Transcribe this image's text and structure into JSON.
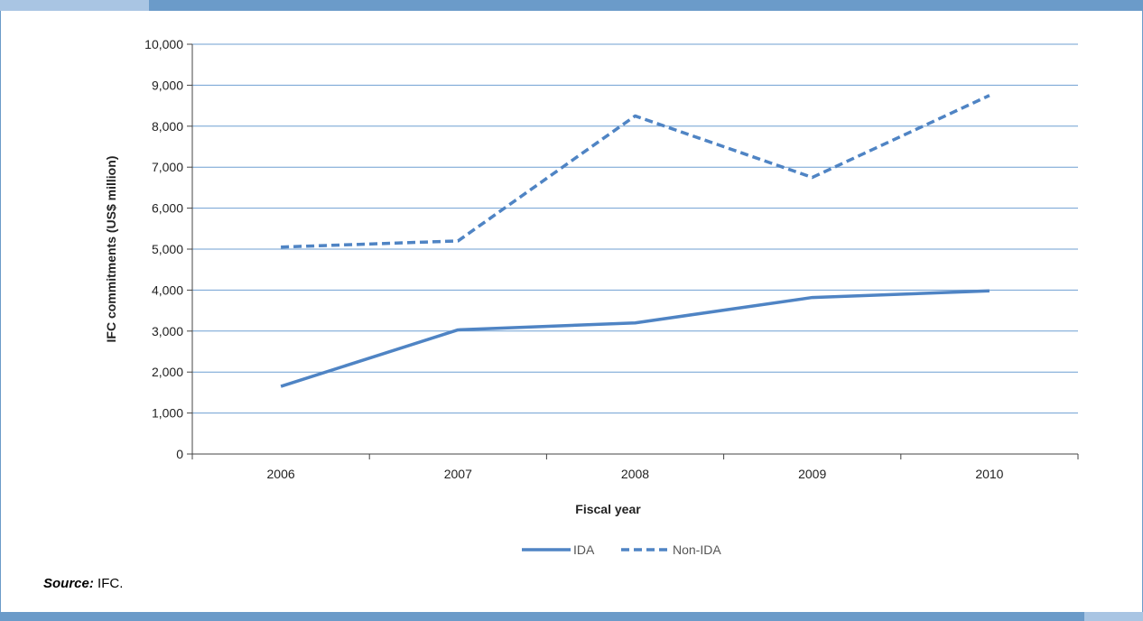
{
  "chart_data": {
    "type": "line",
    "title": "",
    "xlabel": "Fiscal year",
    "ylabel": "IFC commitments (US$ million)",
    "categories": [
      "2006",
      "2007",
      "2008",
      "2009",
      "2010"
    ],
    "ylim": [
      0,
      10000
    ],
    "yticks": [
      0,
      1000,
      2000,
      3000,
      4000,
      5000,
      6000,
      7000,
      8000,
      9000,
      10000
    ],
    "ytick_labels": [
      "0",
      "1,000",
      "2,000",
      "3,000",
      "4,000",
      "5,000",
      "6,000",
      "7,000",
      "8,000",
      "9,000",
      "10,000"
    ],
    "grid": true,
    "legend_position": "bottom",
    "series": [
      {
        "name": "IDA",
        "style": "solid",
        "color": "#4f84c4",
        "values": [
          1650,
          3030,
          3200,
          3820,
          3980
        ]
      },
      {
        "name": "Non-IDA",
        "style": "dashed",
        "color": "#4f84c4",
        "values": [
          5050,
          5200,
          8250,
          6750,
          8750
        ]
      }
    ]
  },
  "source": {
    "label": "Source:",
    "text": " IFC."
  }
}
